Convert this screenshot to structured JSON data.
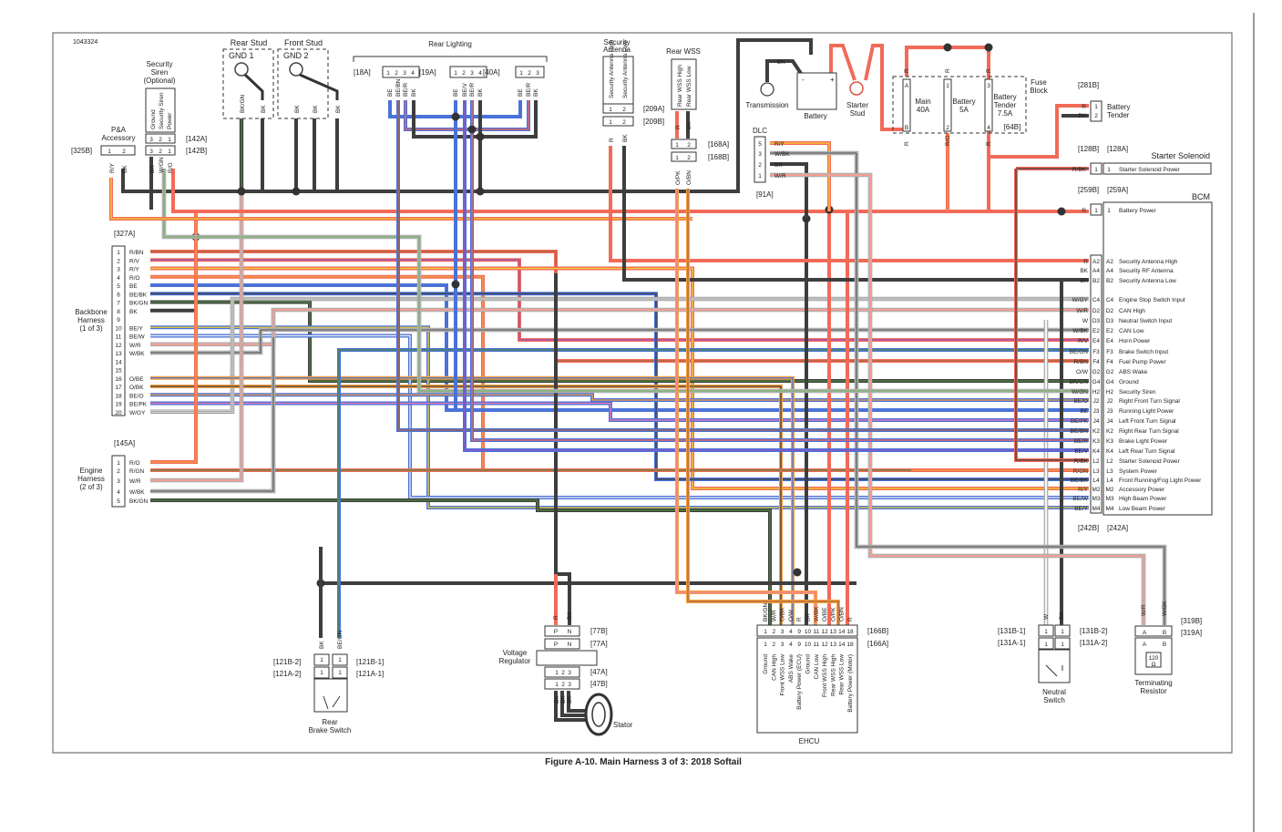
{
  "doc_number": "1043324",
  "caption": "Figure A-10. Main Harness 3 of 3: 2018 Softail",
  "wire_colors": {
    "R": "#f26a58",
    "BK": "#3e3e3e",
    "BE": "#4a72d8",
    "GN": "#4f8a3e",
    "Y": "#f2d22e",
    "O": "#f6a040",
    "V": "#9152c4",
    "W": "#f4f4f4",
    "PK": "#f07ab0",
    "BN": "#a8643c",
    "GY": "#9c9c9c"
  },
  "components": {
    "rear_stud": {
      "title": "Rear Stud",
      "gnd": "GND 1",
      "wires": [
        "BK/GN",
        "BK"
      ]
    },
    "front_stud": {
      "title": "Front Stud",
      "gnd": "GND 2",
      "wires": [
        "BK",
        "BK",
        "BK"
      ]
    },
    "security_siren": {
      "title": [
        "Security",
        "Siren",
        "(Optional)"
      ],
      "pins": [
        "Ground",
        "Security Siren",
        "Power"
      ],
      "pin_numbers": [
        "3",
        "2",
        "1"
      ],
      "conn_a": "[142A]",
      "conn_b": "[142B]",
      "wires": [
        "BK",
        "W/GN",
        "R/O"
      ]
    },
    "pa_accessory": {
      "title": [
        "P&A",
        "Accessory"
      ],
      "conn": "[325B]",
      "pin_numbers": [
        "1",
        "2"
      ],
      "wires": [
        "R/Y",
        "BK"
      ]
    },
    "rear_lighting": {
      "title": "Rear Lighting",
      "connectors": [
        {
          "id": "[18A]",
          "pins": [
            "1",
            "2",
            "3",
            "4"
          ],
          "wires": [
            "BE",
            "BE/BN",
            "BE/R",
            "BK"
          ]
        },
        {
          "id": "[19A]",
          "pins": [
            "1",
            "2",
            "3",
            "4"
          ],
          "wires": [
            "BE",
            "BE/V",
            "BE/R",
            "BK"
          ]
        },
        {
          "id": "[40A]",
          "pins": [
            "1",
            "2",
            "3"
          ],
          "wires": [
            "BE",
            "BE/R",
            "BK"
          ]
        }
      ]
    },
    "security_antenna": {
      "title": [
        "Security",
        "Antenna"
      ],
      "pins": [
        "Security Antenna High",
        "Security Antenna Low"
      ],
      "pin_numbers": [
        "1",
        "2"
      ],
      "conn_a": "[209A]",
      "conn_b": "[209B]",
      "wires": [
        "R",
        "BK"
      ]
    },
    "rear_wss": {
      "title": "Rear WSS",
      "pins": [
        "Rear WSS High",
        "Rear WSS Low"
      ],
      "pin_numbers": [
        "1",
        "2"
      ],
      "conn_a": "[168A]",
      "conn_b": "[168B]",
      "wires_top": [
        "R",
        "BK"
      ],
      "wires": [
        "O/PK",
        "O/BN"
      ]
    },
    "transmission": {
      "title": "Transmission",
      "wire": "BK"
    },
    "battery": {
      "title": "Battery",
      "neg": "-",
      "pos": "+",
      "wires": [
        "BK",
        "R"
      ]
    },
    "starter_stud": {
      "title": [
        "Starter",
        "Stud"
      ],
      "wire": "R"
    },
    "fuse_block": {
      "title": [
        "Fuse",
        "Block"
      ],
      "conn": "[64B]",
      "fuses": [
        {
          "name": [
            "Main",
            "40A"
          ],
          "top": "A",
          "bottom": "B",
          "wire_top": "R",
          "wire_bottom": "R"
        },
        {
          "name": [
            "Battery",
            "5A"
          ],
          "top": "1",
          "bottom": "2",
          "wire_top": "R",
          "wire_bottom": "R/O"
        },
        {
          "name": [
            "Battery",
            "Tender",
            "7.5A"
          ],
          "top": "3",
          "bottom": "4",
          "wire_top": "R",
          "wire_bottom": "R"
        }
      ]
    },
    "battery_tender": {
      "title": [
        "Battery",
        "Tender"
      ],
      "conn": "[281B]",
      "pins": [
        {
          "n": "1",
          "w": "R"
        },
        {
          "n": "2",
          "w": "BK"
        }
      ]
    },
    "dlc": {
      "title": "DLC",
      "conn": "[91A]",
      "pins": [
        {
          "n": "5",
          "w": "R/Y"
        },
        {
          "n": "3",
          "w": "W/BK"
        },
        {
          "n": "2",
          "w": "BK"
        },
        {
          "n": "1",
          "w": "W/R"
        }
      ]
    },
    "starter_solenoid": {
      "title": "Starter Solenoid",
      "conn_b": "[128B]",
      "conn_a": "[128A]",
      "pin": "1",
      "wire": "R/BK",
      "function": "Starter Solenoid Power"
    },
    "bcm": {
      "title": "BCM",
      "conn_b": "[259B]",
      "conn_a": "[259A]",
      "power_pin": {
        "n": "1",
        "w": "R",
        "f": "Battery Power"
      },
      "conn_bottom_b": "[242B]",
      "conn_bottom_a": "[242A]",
      "pins": [
        {
          "n": "A2",
          "w": "R",
          "f": "Security Antenna High"
        },
        {
          "n": "A4",
          "w": "BK",
          "f": "Security RF Antenna"
        },
        {
          "n": "B2",
          "w": "BK",
          "f": "Security Antenna Low"
        },
        {
          "n": "C4",
          "w": "W/GY",
          "f": "Engine Stop Switch Input"
        },
        {
          "n": "D2",
          "w": "W/R",
          "f": "CAN High"
        },
        {
          "n": "D3",
          "w": "W",
          "f": "Neutral Switch Input"
        },
        {
          "n": "E2",
          "w": "W/BK",
          "f": "CAN Low"
        },
        {
          "n": "E4",
          "w": "R/V",
          "f": "Horn Power"
        },
        {
          "n": "F3",
          "w": "BE/GN",
          "f": "Brake Switch Input"
        },
        {
          "n": "F4",
          "w": "R/BN",
          "f": "Fuel Pump Power"
        },
        {
          "n": "G2",
          "w": "O/W",
          "f": "ABS Wake"
        },
        {
          "n": "G4",
          "w": "BK/GN",
          "f": "Ground"
        },
        {
          "n": "H2",
          "w": "W/GN",
          "f": "Security Siren"
        },
        {
          "n": "J2",
          "w": "BE/O",
          "f": "Right Front Turn Signal"
        },
        {
          "n": "J3",
          "w": "BE",
          "f": "Running Light Power"
        },
        {
          "n": "J4",
          "w": "BE/PK",
          "f": "Left Front Turn Signal"
        },
        {
          "n": "K2",
          "w": "BE/BN",
          "f": "Right Rear Turn Signal"
        },
        {
          "n": "K3",
          "w": "BE/R",
          "f": "Brake Light Power"
        },
        {
          "n": "K4",
          "w": "BE/V",
          "f": "Left Rear Turn Signal"
        },
        {
          "n": "L2",
          "w": "R/BK",
          "f": "Starter Solenoid Power"
        },
        {
          "n": "L3",
          "w": "R/GN",
          "f": "System Power"
        },
        {
          "n": "L4",
          "w": "BE/BK",
          "f": "Front Running/Fog Light Power"
        },
        {
          "n": "M2",
          "w": "R/Y",
          "f": "Accessory Power"
        },
        {
          "n": "M3",
          "w": "BE/W",
          "f": "High Beam Power"
        },
        {
          "n": "M4",
          "w": "BE/Y",
          "f": "Low Beam Power"
        }
      ]
    },
    "backbone": {
      "title": [
        "Backbone",
        "Harness",
        "(1 of 3)"
      ],
      "conn": "[327A]",
      "pins": [
        {
          "n": "1",
          "w": "R/BN"
        },
        {
          "n": "2",
          "w": "R/V"
        },
        {
          "n": "3",
          "w": "R/Y"
        },
        {
          "n": "4",
          "w": "R/O"
        },
        {
          "n": "5",
          "w": "BE"
        },
        {
          "n": "6",
          "w": "BE/BK"
        },
        {
          "n": "7",
          "w": "BK/GN"
        },
        {
          "n": "8",
          "w": "BK"
        },
        {
          "n": "9",
          "w": ""
        },
        {
          "n": "10",
          "w": "BE/Y"
        },
        {
          "n": "11",
          "w": "BE/W"
        },
        {
          "n": "12",
          "w": "W/R"
        },
        {
          "n": "13",
          "w": "W/BK"
        },
        {
          "n": "14",
          "w": ""
        },
        {
          "n": "15",
          "w": ""
        },
        {
          "n": "16",
          "w": "O/BE"
        },
        {
          "n": "17",
          "w": "O/BK"
        },
        {
          "n": "18",
          "w": "BE/O"
        },
        {
          "n": "19",
          "w": "BE/PK"
        },
        {
          "n": "20",
          "w": "W/GY"
        }
      ]
    },
    "engine": {
      "title": [
        "Engine",
        "Harness",
        "(2 of 3)"
      ],
      "conn": "[145A]",
      "pins": [
        {
          "n": "1",
          "w": "R/O"
        },
        {
          "n": "2",
          "w": "R/GN"
        },
        {
          "n": "3",
          "w": "W/R"
        },
        {
          "n": "4",
          "w": "W/BK"
        },
        {
          "n": "5",
          "w": "BK/GN"
        }
      ]
    },
    "ehcu": {
      "title": "EHCU",
      "conn_b": "[166B]",
      "conn_a": "[166A]",
      "pins": [
        {
          "n": "1",
          "w": "BK/GN",
          "f": "Ground"
        },
        {
          "n": "2",
          "w": "W/R",
          "f": "CAN High"
        },
        {
          "n": "3",
          "w": "O/BK",
          "f": "Front WSS Low"
        },
        {
          "n": "4",
          "w": "O/W",
          "f": "ABS Wake"
        },
        {
          "n": "9",
          "w": "R",
          "f": "Battery Power (ECU)"
        },
        {
          "n": "10",
          "w": "BK",
          "f": "Ground"
        },
        {
          "n": "11",
          "w": "W/BK",
          "f": "CAN Low"
        },
        {
          "n": "12",
          "w": "O/BE",
          "f": "Front WSS High"
        },
        {
          "n": "13",
          "w": "O/PK",
          "f": "Rear WSS High"
        },
        {
          "n": "14",
          "w": "O/BN",
          "f": "Rear WSS Low"
        },
        {
          "n": "18",
          "w": "R",
          "f": "Battery Power (Motor)"
        }
      ]
    },
    "rear_brake_switch": {
      "title": [
        "Rear",
        "Brake Switch"
      ],
      "conns": [
        "[121B-2]",
        "[121A-2]",
        "[121B-1]",
        "[121A-1]"
      ],
      "pin": "1",
      "wires": [
        "BK",
        "BE/GN"
      ]
    },
    "voltage_regulator": {
      "title": [
        "Voltage",
        "Regulator"
      ],
      "conn_77b": "[77B]",
      "conn_77a": "[77A]",
      "pins_77": [
        "P",
        "N"
      ],
      "conn_47a": "[47A]",
      "conn_47b": "[47B]",
      "pins_47": [
        "1",
        "2",
        "3"
      ],
      "wires_top": [
        "R",
        "BK"
      ],
      "wires_bottom": [
        "BK",
        "BK",
        "BK"
      ]
    },
    "stator": {
      "title": "Stator"
    },
    "neutral_switch": {
      "title": [
        "Neutral",
        "Switch"
      ],
      "conns": [
        "[131B-1]",
        "[131A-1]",
        "[131B-2]",
        "[131A-2]"
      ],
      "pin": "1",
      "wires": [
        "W",
        "BK"
      ]
    },
    "terminating_resistor": {
      "title": [
        "Terminating",
        "Resistor"
      ],
      "conn_b": "[319B]",
      "conn_a": "[319A]",
      "pins": [
        "A",
        "B"
      ],
      "value": [
        "120",
        "Ω"
      ],
      "wires": [
        "W/R",
        "W/BK"
      ]
    }
  }
}
